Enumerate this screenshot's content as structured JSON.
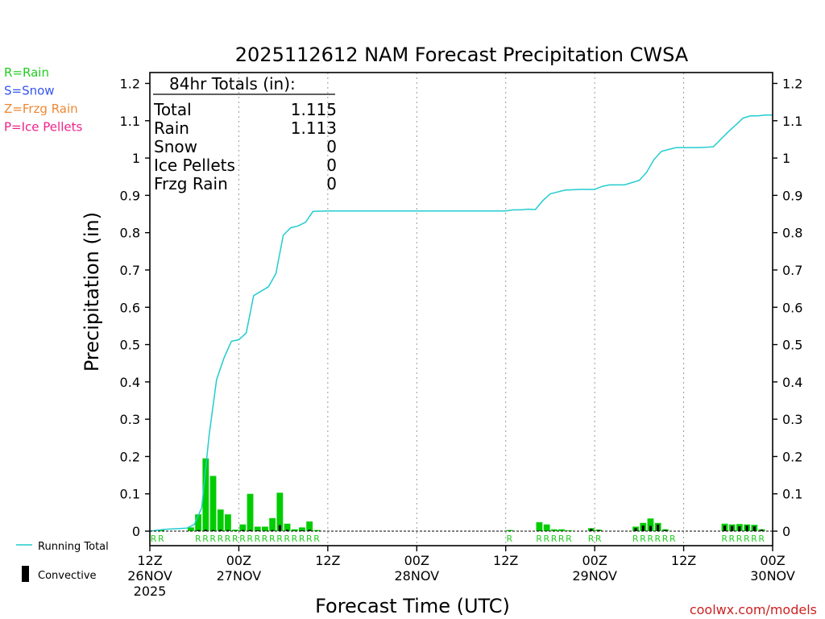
{
  "chart_data": {
    "type": "bar+line",
    "title": "2025112612 NAM Forecast Precipitation CWSA",
    "xlabel": "Forecast Time (UTC)",
    "ylabel": "Precipitation (in)",
    "ylim": [
      0,
      1.2
    ],
    "xlim_hours": [
      0,
      84
    ],
    "y_ticks": [
      "0",
      "0.1",
      "0.2",
      "0.3",
      "0.4",
      "0.5",
      "0.6",
      "0.7",
      "0.8",
      "0.9",
      "1",
      "1.1",
      "1.2"
    ],
    "x_ticks": [
      {
        "hour": 0,
        "time": "12Z",
        "date": "26NOV",
        "year": "2025"
      },
      {
        "hour": 12,
        "time": "00Z",
        "date": "27NOV",
        "year": ""
      },
      {
        "hour": 24,
        "time": "12Z",
        "date": "",
        "year": ""
      },
      {
        "hour": 36,
        "time": "00Z",
        "date": "28NOV",
        "year": ""
      },
      {
        "hour": 48,
        "time": "12Z",
        "date": "",
        "year": ""
      },
      {
        "hour": 60,
        "time": "00Z",
        "date": "29NOV",
        "year": ""
      },
      {
        "hour": 72,
        "time": "12Z",
        "date": "",
        "year": ""
      },
      {
        "hour": 84,
        "time": "00Z",
        "date": "30NOV",
        "year": ""
      }
    ],
    "legend": [
      {
        "label": "R=Rain",
        "color": "#22cc22"
      },
      {
        "label": "S=Snow",
        "color": "#3355ee"
      },
      {
        "label": "Z=Frzg Rain",
        "color": "#ee8833"
      },
      {
        "label": "P=Ice Pellets",
        "color": "#ee2288"
      }
    ],
    "bottom_legend": {
      "running_total": "Running Total",
      "convective": "Convective"
    },
    "totals": {
      "header": "84hr Totals (in):",
      "rows": [
        {
          "label": "Total",
          "value": "1.115"
        },
        {
          "label": "Rain",
          "value": "1.113"
        },
        {
          "label": "Snow",
          "value": "0"
        },
        {
          "label": "Ice Pellets",
          "value": "0"
        },
        {
          "label": "Frzg Rain",
          "value": "0"
        }
      ]
    },
    "bars": [
      {
        "hour": 1,
        "value": 0.002,
        "conv": 0
      },
      {
        "hour": 2,
        "value": 0.003,
        "conv": 0
      },
      {
        "hour": 6,
        "value": 0.01,
        "conv": 0
      },
      {
        "hour": 7,
        "value": 0.045,
        "conv": 0.003
      },
      {
        "hour": 8,
        "value": 0.195,
        "conv": 0.004
      },
      {
        "hour": 9,
        "value": 0.148,
        "conv": 0.003
      },
      {
        "hour": 10,
        "value": 0.058,
        "conv": 0.004
      },
      {
        "hour": 11,
        "value": 0.045,
        "conv": 0.003
      },
      {
        "hour": 12,
        "value": 0.004,
        "conv": 0.001
      },
      {
        "hour": 13,
        "value": 0.018,
        "conv": 0.003
      },
      {
        "hour": 14,
        "value": 0.1,
        "conv": 0.003
      },
      {
        "hour": 15,
        "value": 0.012,
        "conv": 0.002
      },
      {
        "hour": 16,
        "value": 0.012,
        "conv": 0.001
      },
      {
        "hour": 17,
        "value": 0.035,
        "conv": 0.003
      },
      {
        "hour": 18,
        "value": 0.103,
        "conv": 0.016
      },
      {
        "hour": 19,
        "value": 0.02,
        "conv": 0.004
      },
      {
        "hour": 20,
        "value": 0.005,
        "conv": 0.001
      },
      {
        "hour": 21,
        "value": 0.01,
        "conv": 0.002
      },
      {
        "hour": 22,
        "value": 0.026,
        "conv": 0.004
      },
      {
        "hour": 23,
        "value": 0.003,
        "conv": 0
      },
      {
        "hour": 49,
        "value": 0.003,
        "conv": 0
      },
      {
        "hour": 53,
        "value": 0.024,
        "conv": 0.001
      },
      {
        "hour": 54,
        "value": 0.018,
        "conv": 0.001
      },
      {
        "hour": 55,
        "value": 0.005,
        "conv": 0
      },
      {
        "hour": 56,
        "value": 0.005,
        "conv": 0
      },
      {
        "hour": 57,
        "value": 0.002,
        "conv": 0
      },
      {
        "hour": 60,
        "value": 0.008,
        "conv": 0.006
      },
      {
        "hour": 61,
        "value": 0.004,
        "conv": 0.003
      },
      {
        "hour": 66,
        "value": 0.012,
        "conv": 0.008
      },
      {
        "hour": 67,
        "value": 0.022,
        "conv": 0.015
      },
      {
        "hour": 68,
        "value": 0.034,
        "conv": 0.014
      },
      {
        "hour": 69,
        "value": 0.022,
        "conv": 0.018
      },
      {
        "hour": 70,
        "value": 0.005,
        "conv": 0.003
      },
      {
        "hour": 78,
        "value": 0.02,
        "conv": 0.015
      },
      {
        "hour": 79,
        "value": 0.018,
        "conv": 0.014
      },
      {
        "hour": 80,
        "value": 0.019,
        "conv": 0.013
      },
      {
        "hour": 81,
        "value": 0.018,
        "conv": 0.015
      },
      {
        "hour": 82,
        "value": 0.017,
        "conv": 0.013
      },
      {
        "hour": 83,
        "value": 0.005,
        "conv": 0.004
      }
    ],
    "running_total": {
      "hours": [
        0,
        2,
        5,
        6,
        7,
        8,
        9,
        10,
        11,
        12,
        13,
        14,
        15,
        16,
        17,
        18,
        19,
        20,
        21,
        22,
        24,
        30,
        36,
        42,
        48,
        49,
        50,
        51,
        52,
        53,
        54,
        55,
        56,
        58,
        60,
        61,
        62,
        64,
        66,
        67,
        68,
        69,
        70,
        71,
        72,
        74,
        76,
        77,
        78,
        79,
        80,
        81,
        82,
        83,
        84
      ],
      "values": [
        0,
        0.005,
        0.008,
        0.018,
        0.063,
        0.258,
        0.406,
        0.464,
        0.509,
        0.513,
        0.531,
        0.631,
        0.643,
        0.655,
        0.69,
        0.793,
        0.813,
        0.818,
        0.828,
        0.857,
        0.858,
        0.858,
        0.858,
        0.858,
        0.858,
        0.861,
        0.861,
        0.863,
        0.862,
        0.886,
        0.904,
        0.909,
        0.914,
        0.916,
        0.916,
        0.924,
        0.928,
        0.928,
        0.94,
        0.962,
        0.996,
        1.018,
        1.023,
        1.028,
        1.028,
        1.028,
        1.03,
        1.05,
        1.07,
        1.088,
        1.107,
        1.113,
        1.113,
        1.115,
        1.115
      ]
    },
    "precip_type_labels": [
      {
        "hour": 1,
        "type": "R"
      },
      {
        "hour": 2,
        "type": "R"
      },
      {
        "hour": 7,
        "type": "R"
      },
      {
        "hour": 8,
        "type": "R"
      },
      {
        "hour": 9,
        "type": "R"
      },
      {
        "hour": 10,
        "type": "R"
      },
      {
        "hour": 11,
        "type": "R"
      },
      {
        "hour": 12,
        "type": "R"
      },
      {
        "hour": 13,
        "type": "R"
      },
      {
        "hour": 14,
        "type": "R"
      },
      {
        "hour": 15,
        "type": "R"
      },
      {
        "hour": 16,
        "type": "R"
      },
      {
        "hour": 17,
        "type": "R"
      },
      {
        "hour": 18,
        "type": "R"
      },
      {
        "hour": 19,
        "type": "R"
      },
      {
        "hour": 20,
        "type": "R"
      },
      {
        "hour": 21,
        "type": "R"
      },
      {
        "hour": 22,
        "type": "R"
      },
      {
        "hour": 23,
        "type": "R"
      },
      {
        "hour": 49,
        "type": "R"
      },
      {
        "hour": 53,
        "type": "R"
      },
      {
        "hour": 54,
        "type": "R"
      },
      {
        "hour": 55,
        "type": "R"
      },
      {
        "hour": 56,
        "type": "R"
      },
      {
        "hour": 57,
        "type": "R"
      },
      {
        "hour": 60,
        "type": "R"
      },
      {
        "hour": 61,
        "type": "R"
      },
      {
        "hour": 66,
        "type": "R"
      },
      {
        "hour": 67,
        "type": "R"
      },
      {
        "hour": 68,
        "type": "R"
      },
      {
        "hour": 69,
        "type": "R"
      },
      {
        "hour": 70,
        "type": "R"
      },
      {
        "hour": 71,
        "type": "R"
      },
      {
        "hour": 78,
        "type": "R"
      },
      {
        "hour": 79,
        "type": "R"
      },
      {
        "hour": 80,
        "type": "R"
      },
      {
        "hour": 81,
        "type": "R"
      },
      {
        "hour": 82,
        "type": "R"
      },
      {
        "hour": 83,
        "type": "R"
      }
    ],
    "colors": {
      "rain_bar": "#00cc00",
      "convective": "#000000",
      "running_total": "#22ccd0",
      "type_label": "#22cc22",
      "credit": "#cc2222"
    },
    "credit": "coolwx.com/models"
  }
}
